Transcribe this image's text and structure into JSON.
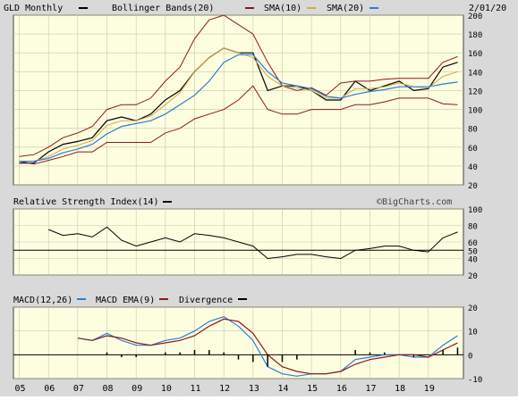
{
  "header": {
    "symbol_label": "GLD Monthly",
    "bollinger_label": "Bollinger Bands(20)",
    "sma10_label": "SMA(10)",
    "sma20_label": "SMA(20)",
    "date_label": "2/01/20",
    "colors": {
      "price": "#000000",
      "bollinger": "#8b1a1a",
      "sma10": "#d4a84a",
      "sma20": "#2a7fd4",
      "legend_swatch_black": "#000000"
    }
  },
  "rsi_header": {
    "label": "Relative Strength Index(14)",
    "watermark": "©BigCharts.com"
  },
  "macd_header": {
    "macd_label": "MACD(12,26)",
    "ema_label": "MACD EMA(9)",
    "divergence_label": "Divergence",
    "colors": {
      "macd": "#2a7fd4",
      "ema": "#8b1a1a",
      "divergence": "#000000"
    }
  },
  "x_tick_labels": [
    "05",
    "06",
    "07",
    "08",
    "09",
    "10",
    "11",
    "12",
    "13",
    "14",
    "15",
    "16",
    "17",
    "18",
    "19"
  ],
  "chart_data": [
    {
      "type": "line",
      "panel": "price",
      "x": [
        2005.0,
        2005.5,
        2006.0,
        2006.5,
        2007.0,
        2007.5,
        2008.0,
        2008.5,
        2009.0,
        2009.5,
        2010.0,
        2010.5,
        2011.0,
        2011.5,
        2012.0,
        2012.5,
        2013.0,
        2013.5,
        2014.0,
        2014.5,
        2015.0,
        2015.5,
        2016.0,
        2016.5,
        2017.0,
        2017.5,
        2018.0,
        2018.5,
        2019.0,
        2019.5,
        2020.0
      ],
      "series": [
        {
          "name": "price",
          "values": [
            43,
            43,
            55,
            63,
            66,
            70,
            88,
            92,
            88,
            95,
            110,
            120,
            140,
            155,
            165,
            160,
            160,
            120,
            125,
            125,
            120,
            110,
            110,
            130,
            120,
            125,
            130,
            120,
            122,
            145,
            150
          ]
        },
        {
          "values": [
            50,
            52,
            60,
            70,
            75,
            82,
            100,
            105,
            105,
            112,
            130,
            145,
            175,
            195,
            200,
            190,
            180,
            150,
            125,
            120,
            123,
            115,
            128,
            130,
            130,
            132,
            133,
            133,
            133,
            150,
            156
          ]
        },
        {
          "values": [
            45,
            45,
            48,
            55,
            60,
            65,
            75,
            83,
            85,
            88,
            95,
            105,
            115,
            130,
            150,
            160,
            160,
            140,
            125,
            125,
            123,
            115,
            108,
            112,
            118,
            120,
            125,
            125,
            125,
            128,
            130
          ]
        },
        {
          "values": [
            45,
            42,
            46,
            50,
            55,
            55,
            65,
            65,
            65,
            65,
            75,
            80,
            90,
            95,
            100,
            110,
            125,
            100,
            95,
            95,
            100,
            100,
            100,
            105,
            105,
            108,
            112,
            112,
            112,
            106,
            105
          ]
        },
        {
          "values": [
            45,
            45,
            50,
            58,
            62,
            67,
            83,
            88,
            88,
            93,
            105,
            118,
            140,
            155,
            165,
            160,
            155,
            135,
            125,
            123,
            120,
            112,
            112,
            122,
            122,
            124,
            128,
            124,
            123,
            135,
            140
          ]
        },
        {
          "values": [
            45,
            45,
            48,
            54,
            58,
            63,
            74,
            82,
            85,
            88,
            95,
            105,
            115,
            130,
            150,
            158,
            158,
            140,
            128,
            125,
            122,
            114,
            112,
            116,
            119,
            121,
            124,
            124,
            124,
            127,
            129
          ]
        }
      ],
      "ylim": [
        20,
        200
      ],
      "y_ticks": [
        20,
        40,
        60,
        80,
        100,
        120,
        140,
        160,
        180,
        200
      ]
    },
    {
      "type": "line",
      "panel": "rsi",
      "x": [
        2006.0,
        2006.5,
        2007.0,
        2007.5,
        2008.0,
        2008.5,
        2009.0,
        2009.5,
        2010.0,
        2010.5,
        2011.0,
        2011.5,
        2012.0,
        2012.5,
        2013.0,
        2013.5,
        2014.0,
        2014.5,
        2015.0,
        2015.5,
        2016.0,
        2016.5,
        2017.0,
        2017.5,
        2018.0,
        2018.5,
        2019.0,
        2019.5,
        2020.0
      ],
      "series": [
        {
          "values": [
            75,
            68,
            70,
            66,
            78,
            62,
            55,
            60,
            65,
            60,
            70,
            68,
            65,
            60,
            55,
            40,
            42,
            45,
            45,
            42,
            40,
            50,
            52,
            55,
            55,
            50,
            48,
            65,
            72
          ]
        }
      ],
      "ylim": [
        20,
        100
      ],
      "y_ticks": [
        20,
        40,
        50,
        60,
        80,
        100
      ]
    },
    {
      "type": "line",
      "panel": "macd",
      "x": [
        2007.0,
        2007.5,
        2008.0,
        2008.5,
        2009.0,
        2009.5,
        2010.0,
        2010.5,
        2011.0,
        2011.5,
        2012.0,
        2012.5,
        2013.0,
        2013.5,
        2014.0,
        2014.5,
        2015.0,
        2015.5,
        2016.0,
        2016.5,
        2017.0,
        2017.5,
        2018.0,
        2018.5,
        2019.0,
        2019.5,
        2020.0
      ],
      "series": [
        {
          "values": [
            7,
            6,
            9,
            6,
            4,
            4,
            6,
            7,
            10,
            14,
            16,
            12,
            6,
            -5,
            -8,
            -9,
            -8,
            -8,
            -7,
            -2,
            -1,
            0,
            0,
            -1,
            -1,
            4,
            8
          ]
        },
        {
          "values": [
            7,
            6,
            8,
            7,
            5,
            4,
            5,
            6,
            8,
            12,
            15,
            14,
            9,
            0,
            -5,
            -7,
            -8,
            -8,
            -7,
            -4,
            -2,
            -1,
            0,
            0,
            -1,
            2,
            5
          ]
        },
        {
          "values": [
            0,
            0,
            1,
            -1,
            -1,
            0,
            1,
            1,
            2,
            2,
            1,
            -2,
            -3,
            -5,
            -3,
            -2,
            0,
            0,
            0,
            2,
            1,
            1,
            0,
            -1,
            0,
            2,
            3
          ]
        }
      ],
      "ylim": [
        -10,
        20
      ],
      "y_ticks": [
        -10,
        0,
        10,
        20
      ]
    }
  ]
}
